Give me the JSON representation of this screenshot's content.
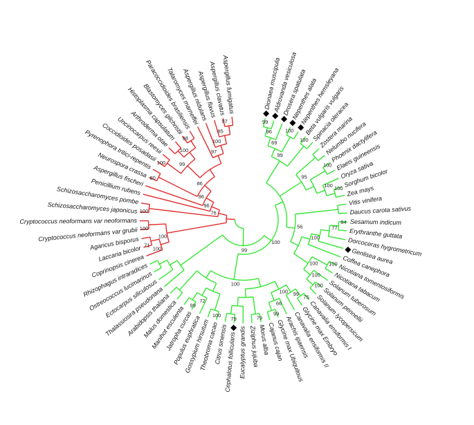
{
  "tree": {
    "leaves": [
      {
        "name": "Dionaea muscipula",
        "color": "#33e633",
        "marked": true
      },
      {
        "name": "Aldrovanda vesiculosa",
        "color": "#33e633",
        "marked": true
      },
      {
        "name": "Drosera spatulata",
        "color": "#33e633",
        "marked": true
      },
      {
        "name": "Nepenthes alata",
        "color": "#33e633",
        "marked": true
      },
      {
        "name": "Nepenthes hemsleyana",
        "color": "#33e633",
        "marked": true
      },
      {
        "name": "Beta vulgaris vulgaris",
        "color": "#33e633",
        "marked": false
      },
      {
        "name": "Spinacia oleracea",
        "color": "#33e633",
        "marked": false
      },
      {
        "name": "Zostera marina",
        "color": "#33e633",
        "marked": false
      },
      {
        "name": "Nelumbo nucifera",
        "color": "#33e633",
        "marked": false
      },
      {
        "name": "Phoenix dactylifera",
        "color": "#33e633",
        "marked": false
      },
      {
        "name": "Elaeis guineensis",
        "color": "#33e633",
        "marked": false
      },
      {
        "name": "Oryza sativa",
        "color": "#33e633",
        "marked": false
      },
      {
        "name": "Sorghum bicolor",
        "color": "#33e633",
        "marked": false
      },
      {
        "name": "Zea mays",
        "color": "#33e633",
        "marked": false
      },
      {
        "name": "Vitis vinifera",
        "color": "#33e633",
        "marked": false
      },
      {
        "name": "Daucus carota sativus",
        "color": "#33e633",
        "marked": false
      },
      {
        "name": "Sesamum indicum",
        "color": "#33e633",
        "marked": false
      },
      {
        "name": "Erythranthe guttata",
        "color": "#33e633",
        "marked": false
      },
      {
        "name": "Dorcoceras hygrometricum",
        "color": "#33e633",
        "marked": false
      },
      {
        "name": "Genlisea aurea",
        "color": "#33e633",
        "marked": true
      },
      {
        "name": "Coffea canephora",
        "color": "#33e633",
        "marked": false
      },
      {
        "name": "Nicotiana tomentosiformis",
        "color": "#33e633",
        "marked": false
      },
      {
        "name": "Nicotiana tabacum",
        "color": "#33e633",
        "marked": false
      },
      {
        "name": "Solanum tuberosum",
        "color": "#33e633",
        "marked": false
      },
      {
        "name": "Solanum pennellii",
        "color": "#33e633",
        "marked": false
      },
      {
        "name": "Solanum lycopersicum",
        "color": "#33e633",
        "marked": false
      },
      {
        "name": "Canavalia ensiformis I",
        "color": "#33e633",
        "marked": false
      },
      {
        "name": "Glycine max Embryo",
        "color": "#33e633",
        "marked": false
      },
      {
        "name": "Canavalia ensiformis II",
        "color": "#33e633",
        "marked": false
      },
      {
        "name": "Arachis ipaensis",
        "color": "#33e633",
        "marked": false
      },
      {
        "name": "Glycine max Ubiquitous",
        "color": "#33e633",
        "marked": false
      },
      {
        "name": "Cajanus cajan",
        "color": "#33e633",
        "marked": false
      },
      {
        "name": "Morus alba",
        "color": "#33e633",
        "marked": false
      },
      {
        "name": "Ziziphus jujuba",
        "color": "#33e633",
        "marked": false
      },
      {
        "name": "Eucalyptus grandis",
        "color": "#33e633",
        "marked": false
      },
      {
        "name": "Cephalotus follicularis",
        "color": "#33e633",
        "marked": true
      },
      {
        "name": "Citrus sinensis",
        "color": "#33e633",
        "marked": false
      },
      {
        "name": "Theobroma cacao",
        "color": "#33e633",
        "marked": false
      },
      {
        "name": "Gossypium hirsutum",
        "color": "#33e633",
        "marked": false
      },
      {
        "name": "Populus euphratica",
        "color": "#33e633",
        "marked": false
      },
      {
        "name": "Jatropha curcas",
        "color": "#33e633",
        "marked": false
      },
      {
        "name": "Manihot esculenta",
        "color": "#33e633",
        "marked": false
      },
      {
        "name": "Malus domestica",
        "color": "#33e633",
        "marked": false
      },
      {
        "name": "Arabidopsis thaliana",
        "color": "#33e633",
        "marked": false
      },
      {
        "name": "Thalassiosira pseudonana",
        "color": "#33e633",
        "marked": false
      },
      {
        "name": "Ectocarpus siliculosus",
        "color": "#33e633",
        "marked": false
      },
      {
        "name": "Ostreococcus lucimarinus",
        "color": "#33e633",
        "marked": false
      },
      {
        "name": "Rhizophagus intraradices",
        "color": "#33e633",
        "marked": false
      },
      {
        "name": "Coprinopsis cinerea",
        "color": "#e02c2c",
        "marked": false
      },
      {
        "name": "Laccaria bicolor",
        "color": "#e02c2c",
        "marked": false
      },
      {
        "name": "Agaricus bisporus",
        "color": "#e02c2c",
        "marked": false
      },
      {
        "name": "Cryptococcus neoformans var grubii",
        "color": "#e02c2c",
        "marked": false
      },
      {
        "name": "Cryptococcus neoformans var neoformans",
        "color": "#e02c2c",
        "marked": false
      },
      {
        "name": "Schizosaccharomyces japonicus",
        "color": "#e02c2c",
        "marked": false
      },
      {
        "name": "Schizosaccharomyces pombe",
        "color": "#e02c2c",
        "marked": false
      },
      {
        "name": "Penicillium rubens",
        "color": "#e02c2c",
        "marked": false
      },
      {
        "name": "Aspergillus fischeri",
        "color": "#e02c2c",
        "marked": false
      },
      {
        "name": "Neurospora crassa",
        "color": "#e02c2c",
        "marked": false
      },
      {
        "name": "Pyrenophora tritici-repentis",
        "color": "#e02c2c",
        "marked": false
      },
      {
        "name": "Coccidioides posadasii",
        "color": "#e02c2c",
        "marked": false
      },
      {
        "name": "Uncinocarpus reesii",
        "color": "#e02c2c",
        "marked": false
      },
      {
        "name": "Arthroderma otae",
        "color": "#e02c2c",
        "marked": false
      },
      {
        "name": "Histoplasma capsulatum",
        "color": "#e02c2c",
        "marked": false
      },
      {
        "name": "Blastomyces gilchristii",
        "color": "#e02c2c",
        "marked": false
      },
      {
        "name": "Paracoccidioides brasiliensis",
        "color": "#e02c2c",
        "marked": false
      },
      {
        "name": "Talaromyces marneffei",
        "color": "#e02c2c",
        "marked": false
      },
      {
        "name": "Aspergillus nidulans",
        "color": "#e02c2c",
        "marked": false
      },
      {
        "name": "Aspergillus flavus",
        "color": "#e02c2c",
        "marked": false
      },
      {
        "name": "Aspergillus clavatus",
        "color": "#e02c2c",
        "marked": false
      },
      {
        "name": "Aspergillus fumigatus",
        "color": "#e02c2c",
        "marked": false
      }
    ],
    "supports": [
      99,
      96,
      100,
      69,
      100,
      99,
      100,
      100,
      100,
      95,
      84,
      77,
      100,
      100,
      100,
      100,
      100,
      56,
      75,
      99,
      99,
      66,
      100,
      79,
      79,
      100,
      99,
      72,
      100,
      100,
      99,
      71,
      100,
      100,
      100,
      100,
      80,
      100,
      98,
      100,
      99,
      97,
      85,
      100,
      97,
      86,
      96,
      96,
      76
    ]
  }
}
